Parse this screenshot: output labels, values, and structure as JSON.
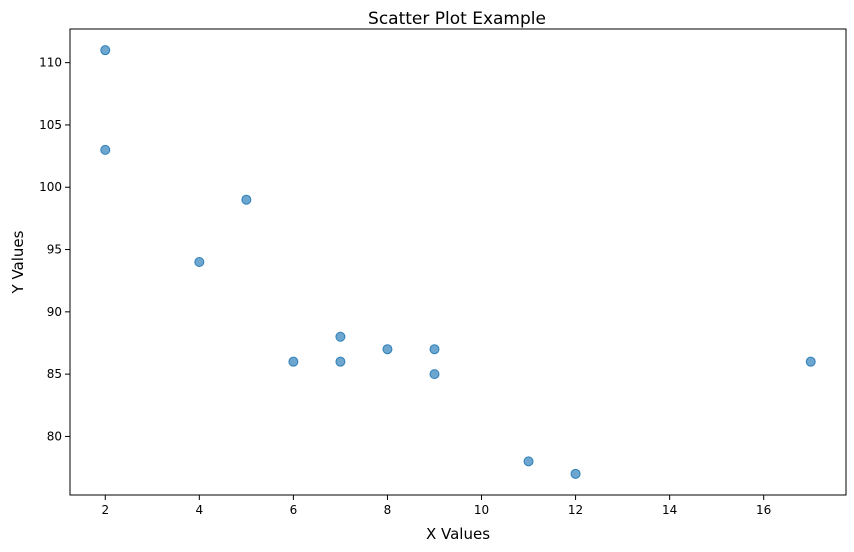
{
  "chart_data": {
    "type": "scatter",
    "title": "Scatter Plot Example",
    "xlabel": "X Values",
    "ylabel": "Y Values",
    "xlim": [
      1.25,
      17.75
    ],
    "ylim": [
      75.3,
      112.7
    ],
    "xticks": [
      2,
      4,
      6,
      8,
      10,
      12,
      14,
      16
    ],
    "yticks": [
      80,
      85,
      90,
      95,
      100,
      105,
      110
    ],
    "grid": false,
    "marker_color": "#1f77b4",
    "marker_alpha": 0.65,
    "series": [
      {
        "x": [
          2,
          2,
          5,
          4,
          6,
          7,
          7,
          8,
          9,
          9,
          11,
          12,
          17
        ],
        "y": [
          111,
          103,
          99,
          94,
          86,
          88,
          86,
          87,
          87,
          85,
          78,
          77,
          86
        ]
      }
    ]
  }
}
